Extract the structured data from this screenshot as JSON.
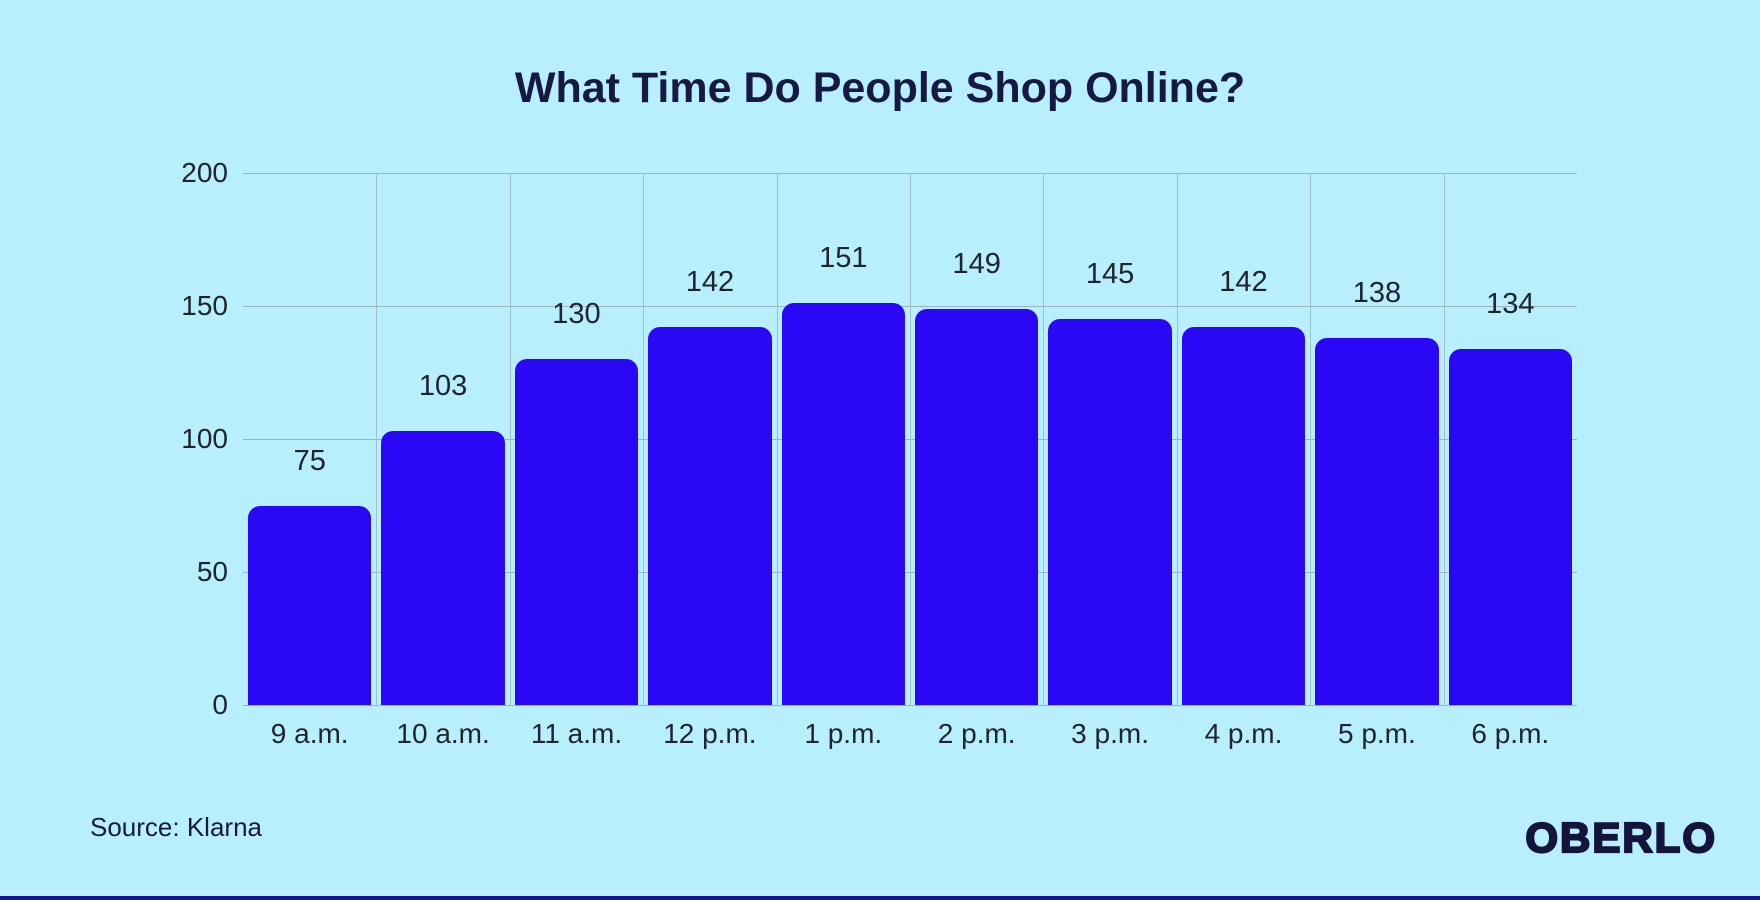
{
  "title": "What Time Do People Shop Online?",
  "source_label": "Source: Klarna",
  "brand_logo": "OBERLO",
  "colors": {
    "background": "#b7effc",
    "bar": "#2a08f5",
    "title_text": "#181845",
    "axis_text": "#20242e",
    "gridline": "#9db4be",
    "bottom_strip": "#171492"
  },
  "chart_data": {
    "type": "bar",
    "title": "What Time Do People Shop Online?",
    "categories": [
      "9 a.m.",
      "10 a.m.",
      "11 a.m.",
      "12 p.m.",
      "1 p.m.",
      "2 p.m.",
      "3 p.m.",
      "4 p.m.",
      "5 p.m.",
      "6 p.m."
    ],
    "values": [
      75,
      103,
      130,
      142,
      151,
      149,
      145,
      142,
      138,
      134
    ],
    "xlabel": "",
    "ylabel": "",
    "ylim": [
      0,
      200
    ],
    "yticks": [
      0,
      50,
      100,
      150,
      200
    ],
    "grid": "on",
    "legend": "none",
    "data_labels": "above bars",
    "source": "Source: Klarna"
  }
}
